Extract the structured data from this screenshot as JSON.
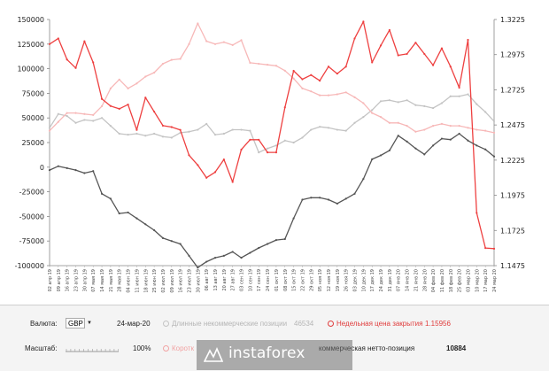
{
  "chart_data": {
    "type": "line",
    "left_axis": {
      "ticks": [
        "150000",
        "125000",
        "100000",
        "75000",
        "50000",
        "25000",
        "0",
        "-25000",
        "-50000",
        "-75000",
        "-100000"
      ],
      "range": [
        -100000,
        150000
      ]
    },
    "right_axis": {
      "ticks": [
        "1.3225",
        "1.2975",
        "1.2725",
        "1.2475",
        "1.2225",
        "1.1975",
        "1.1725",
        "1.1475"
      ],
      "range": [
        1.1475,
        1.3225
      ]
    },
    "x_labels": [
      "02 апр 19",
      "09 апр 19",
      "16 апр 19",
      "23 апр 19",
      "30 апр 19",
      "07 мая 19",
      "14 мая 19",
      "21 мая 19",
      "28 мая 19",
      "04 июн 19",
      "11 июн 19",
      "18 июн 19",
      "25 июн 19",
      "02 июл 19",
      "09 июл 19",
      "16 июл 19",
      "23 июл 19",
      "30 июл 19",
      "06 авг 19",
      "13 авг 19",
      "20 авг 19",
      "27 авг 19",
      "03 сен 19",
      "10 сен 19",
      "17 сен 19",
      "24 сен 19",
      "01 окт 19",
      "08 окт 19",
      "15 окт 19",
      "22 окт 19",
      "29 окт 19",
      "05 ноя 19",
      "12 ноя 19",
      "19 ноя 19",
      "26 ноя 19",
      "03 дек 19",
      "10 дек 19",
      "17 дек 19",
      "24 дек 19",
      "31 дек 19",
      "07 янв 20",
      "14 янв 20",
      "21 янв 20",
      "28 янв 20",
      "04 фев 20",
      "11 фев 20",
      "18 фев 20",
      "25 фев 20",
      "03 мар 20",
      "10 мар 20",
      "17 мар 20",
      "24 мар 20"
    ],
    "series": [
      {
        "name": "Длинные некоммерческие позиции",
        "axis": "left",
        "color": "#c4c4c4",
        "values": [
          40000,
          54000,
          52000,
          45000,
          48000,
          47000,
          50000,
          42000,
          34000,
          33000,
          34000,
          32000,
          34000,
          31000,
          30000,
          35000,
          36000,
          38000,
          44000,
          33000,
          34000,
          38000,
          38000,
          37000,
          15000,
          19000,
          22000,
          27000,
          25000,
          30000,
          38000,
          41000,
          40000,
          38000,
          37000,
          45000,
          51000,
          58000,
          67000,
          68000,
          66000,
          68000,
          63000,
          62000,
          60000,
          65000,
          72000,
          72000,
          74000,
          64000,
          56000,
          46534
        ]
      },
      {
        "name": "Короткие некоммерческие позиции",
        "axis": "left",
        "color": "#f7b8b8",
        "values": [
          37000,
          46000,
          55000,
          55000,
          54000,
          53000,
          62000,
          80000,
          89000,
          80000,
          85000,
          92000,
          96000,
          105000,
          109000,
          110000,
          125000,
          146000,
          128000,
          125000,
          127000,
          124000,
          129000,
          106000,
          105000,
          104000,
          103000,
          98000,
          90000,
          80000,
          77000,
          73000,
          73000,
          74000,
          76000,
          71000,
          65000,
          55000,
          51000,
          45000,
          45000,
          42000,
          36000,
          38000,
          42000,
          44000,
          42000,
          42000,
          40000,
          38000,
          37000,
          35000
        ]
      },
      {
        "name": "Недельная цена закрытия",
        "axis": "right",
        "color": "#ee4040",
        "values": [
          1.305,
          1.309,
          1.294,
          1.288,
          1.307,
          1.292,
          1.266,
          1.261,
          1.259,
          1.262,
          1.244,
          1.267,
          1.257,
          1.247,
          1.246,
          1.244,
          1.226,
          1.219,
          1.21,
          1.214,
          1.223,
          1.207,
          1.23,
          1.237,
          1.237,
          1.228,
          1.228,
          1.26,
          1.286,
          1.28,
          1.283,
          1.279,
          1.289,
          1.284,
          1.289,
          1.309,
          1.321,
          1.292,
          1.304,
          1.315,
          1.297,
          1.298,
          1.306,
          1.298,
          1.29,
          1.302,
          1.289,
          1.274,
          1.308,
          1.185,
          1.16,
          1.15956
        ]
      },
      {
        "name": "Некоммерческая нетто-позиция",
        "axis": "left",
        "color": "#555555",
        "values": [
          -3000,
          1000,
          -1000,
          -3000,
          -6000,
          -4000,
          -27000,
          -32000,
          -47000,
          -46000,
          -52000,
          -58000,
          -64000,
          -72000,
          -75000,
          -78000,
          -90000,
          -102000,
          -96000,
          -92000,
          -90000,
          -86000,
          -92000,
          -87000,
          -82000,
          -78000,
          -74000,
          -73000,
          -52000,
          -33000,
          -31000,
          -31000,
          -33000,
          -37000,
          -32000,
          -27000,
          -12000,
          8000,
          12000,
          17000,
          32000,
          26000,
          19000,
          13000,
          22000,
          29000,
          28000,
          34000,
          27000,
          22000,
          18000,
          10884
        ]
      }
    ]
  },
  "controls": {
    "currency_label": "Валюта:",
    "currency_value": "GBP",
    "date": "24-мар-20",
    "long_label": "Длинные некоммерческие позиции",
    "long_value": "46534",
    "close_label": "Недельная цена закрытия",
    "close_value": "1.15956",
    "scale_label": "Масштаб:",
    "scale_value": "100%",
    "short_label": "Коротк",
    "net_label": "коммерческая нетто-позиция",
    "net_value": "10884"
  },
  "watermark": {
    "text": "instaforex"
  }
}
